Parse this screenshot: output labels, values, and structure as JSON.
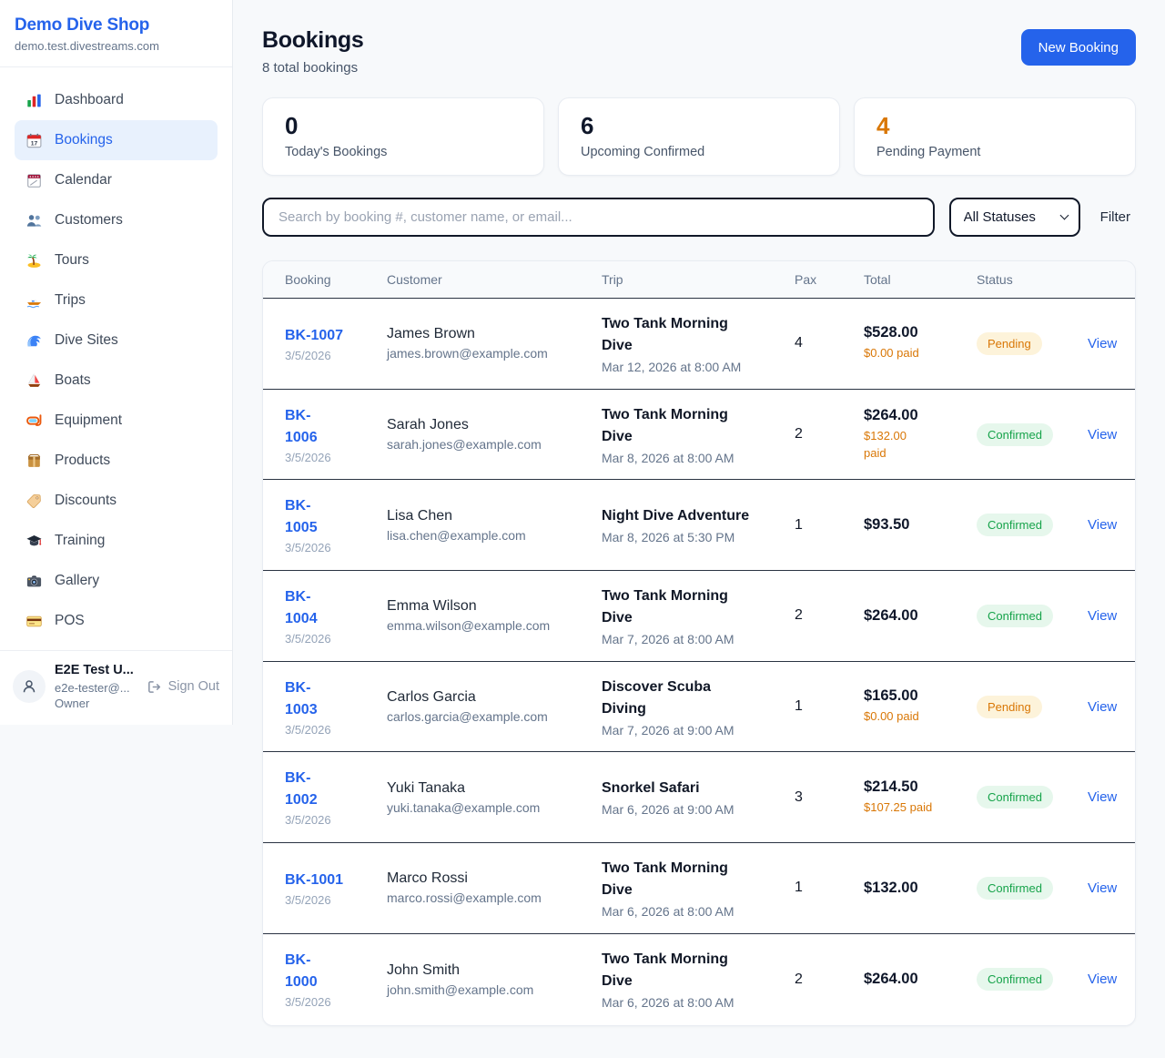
{
  "colors": {
    "accent": "#2563eb",
    "pending": "#d97706",
    "confirmed": "#16a34a",
    "dark": "#0f172a"
  },
  "sidebar": {
    "shop_name": "Demo Dive Shop",
    "shop_domain": "demo.test.divestreams.com",
    "items": [
      {
        "label": "Dashboard",
        "icon": "dashboard",
        "active": false
      },
      {
        "label": "Bookings",
        "icon": "bookings",
        "active": true
      },
      {
        "label": "Calendar",
        "icon": "calendar",
        "active": false
      },
      {
        "label": "Customers",
        "icon": "customers",
        "active": false
      },
      {
        "label": "Tours",
        "icon": "tours",
        "active": false
      },
      {
        "label": "Trips",
        "icon": "trips",
        "active": false
      },
      {
        "label": "Dive Sites",
        "icon": "dive-sites",
        "active": false
      },
      {
        "label": "Boats",
        "icon": "boats",
        "active": false
      },
      {
        "label": "Equipment",
        "icon": "equipment",
        "active": false
      },
      {
        "label": "Products",
        "icon": "products",
        "active": false
      },
      {
        "label": "Discounts",
        "icon": "discounts",
        "active": false
      },
      {
        "label": "Training",
        "icon": "training",
        "active": false
      },
      {
        "label": "Gallery",
        "icon": "gallery",
        "active": false
      },
      {
        "label": "POS",
        "icon": "pos",
        "active": false
      }
    ],
    "user": {
      "name": "E2E Test U...",
      "email": "e2e-tester@...",
      "role": "Owner",
      "sign_out_label": "Sign Out"
    }
  },
  "header": {
    "title": "Bookings",
    "subtitle": "8 total bookings",
    "new_booking_label": "New Booking"
  },
  "stats": [
    {
      "value": "0",
      "label": "Today's Bookings",
      "value_color": "#0f172a"
    },
    {
      "value": "6",
      "label": "Upcoming Confirmed",
      "value_color": "#0f172a"
    },
    {
      "value": "4",
      "label": "Pending Payment",
      "value_color": "#d97706"
    }
  ],
  "filters": {
    "search_placeholder": "Search by booking #, customer name, or email...",
    "status_selected": "All Statuses",
    "filter_label": "Filter"
  },
  "table": {
    "columns": [
      "Booking",
      "Customer",
      "Trip",
      "Pax",
      "Total",
      "Status"
    ],
    "rows": [
      {
        "id": "BK-1007",
        "date": "3/5/2026",
        "customer": "James Brown",
        "email": "james.brown@example.com",
        "trip": "Two Tank Morning\nDive",
        "trip_datetime": "Mar 12, 2026 at 8:00 AM",
        "pax": "4",
        "total": "$528.00",
        "paid": "$0.00 paid",
        "status": "Pending",
        "view_label": "View"
      },
      {
        "id": "BK-\n1006",
        "date": "3/5/2026",
        "customer": "Sarah Jones",
        "email": "sarah.jones@example.com",
        "trip": "Two Tank Morning\nDive",
        "trip_datetime": "Mar 8, 2026 at 8:00 AM",
        "pax": "2",
        "total": "$264.00",
        "paid": "$132.00\npaid",
        "status": "Confirmed",
        "view_label": "View"
      },
      {
        "id": "BK-\n1005",
        "date": "3/5/2026",
        "customer": "Lisa Chen",
        "email": "lisa.chen@example.com",
        "trip": "Night Dive Adventure",
        "trip_datetime": "Mar 8, 2026 at 5:30 PM",
        "pax": "1",
        "total": "$93.50",
        "paid": null,
        "status": "Confirmed",
        "view_label": "View"
      },
      {
        "id": "BK-\n1004",
        "date": "3/5/2026",
        "customer": "Emma Wilson",
        "email": "emma.wilson@example.com",
        "trip": "Two Tank Morning\nDive",
        "trip_datetime": "Mar 7, 2026 at 8:00 AM",
        "pax": "2",
        "total": "$264.00",
        "paid": null,
        "status": "Confirmed",
        "view_label": "View"
      },
      {
        "id": "BK-\n1003",
        "date": "3/5/2026",
        "customer": "Carlos Garcia",
        "email": "carlos.garcia@example.com",
        "trip": "Discover Scuba\nDiving",
        "trip_datetime": "Mar 7, 2026 at 9:00 AM",
        "pax": "1",
        "total": "$165.00",
        "paid": "$0.00 paid",
        "status": "Pending",
        "view_label": "View"
      },
      {
        "id": "BK-\n1002",
        "date": "3/5/2026",
        "customer": "Yuki Tanaka",
        "email": "yuki.tanaka@example.com",
        "trip": "Snorkel Safari",
        "trip_datetime": "Mar 6, 2026 at 9:00 AM",
        "pax": "3",
        "total": "$214.50",
        "paid": "$107.25 paid",
        "status": "Confirmed",
        "view_label": "View"
      },
      {
        "id": "BK-1001",
        "date": "3/5/2026",
        "customer": "Marco Rossi",
        "email": "marco.rossi@example.com",
        "trip": "Two Tank Morning\nDive",
        "trip_datetime": "Mar 6, 2026 at 8:00 AM",
        "pax": "1",
        "total": "$132.00",
        "paid": null,
        "status": "Confirmed",
        "view_label": "View"
      },
      {
        "id": "BK-\n1000",
        "date": "3/5/2026",
        "customer": "John Smith",
        "email": "john.smith@example.com",
        "trip": "Two Tank Morning\nDive",
        "trip_datetime": "Mar 6, 2026 at 8:00 AM",
        "pax": "2",
        "total": "$264.00",
        "paid": null,
        "status": "Confirmed",
        "view_label": "View"
      }
    ]
  }
}
